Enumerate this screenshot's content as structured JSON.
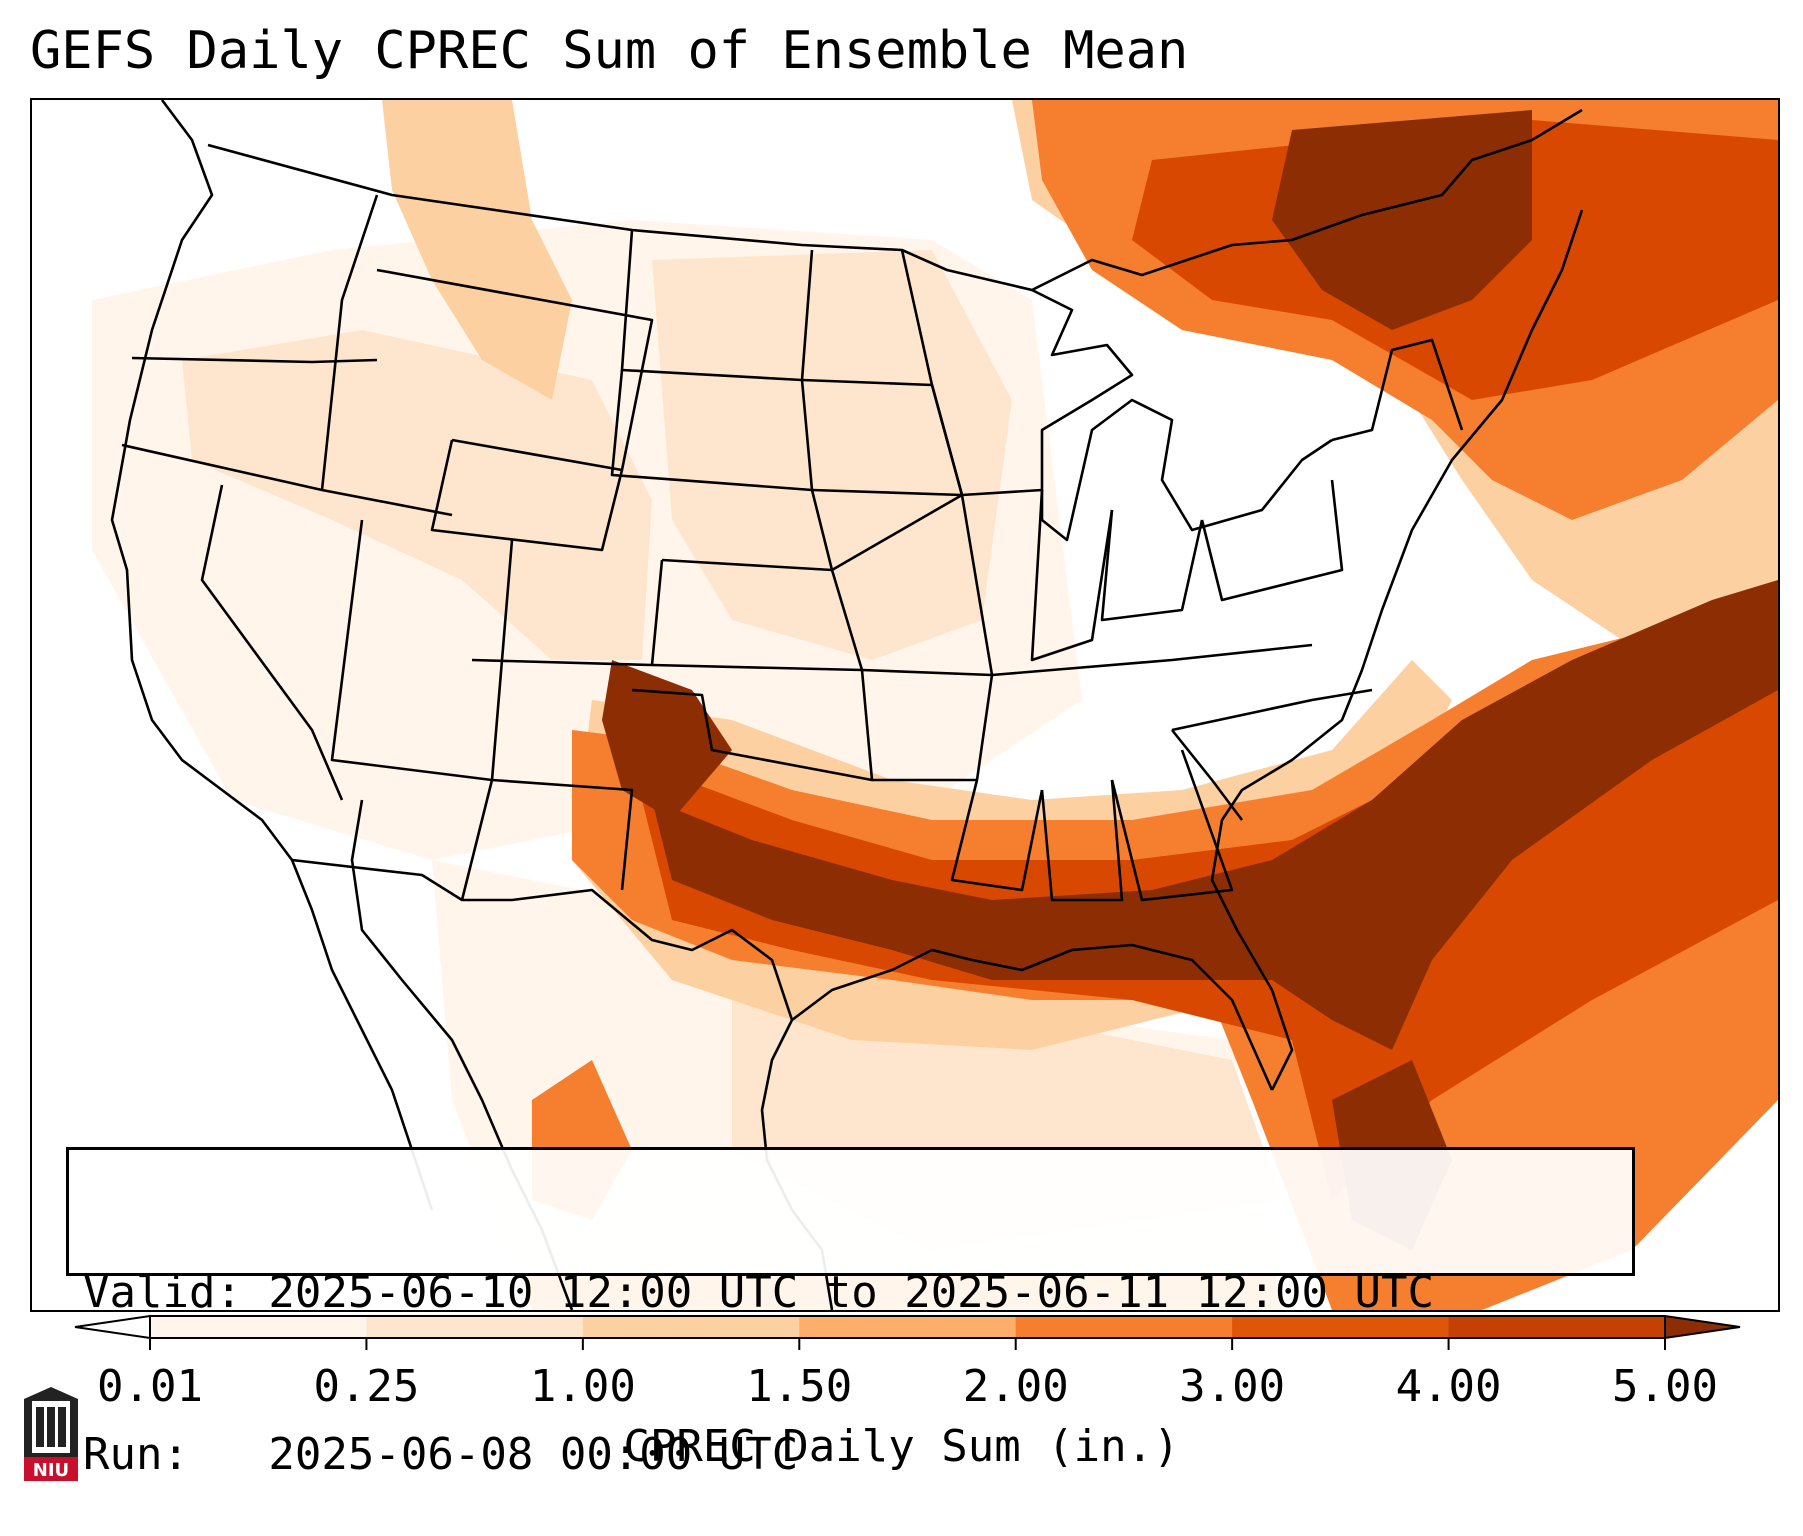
{
  "title": "GEFS Daily CPREC Sum of Ensemble Mean",
  "info": {
    "valid_line": "Valid: 2025-06-10 12:00 UTC to 2025-06-11 12:00 UTC",
    "run_line": "Run:   2025-06-08 00:00 UTC"
  },
  "colorbar": {
    "label": "CPREC Daily Sum (in.)",
    "ticks": [
      "0.01",
      "0.25",
      "1.00",
      "1.50",
      "2.00",
      "3.00",
      "4.00",
      "5.00"
    ],
    "colors": [
      "#fff5eb",
      "#fee6ce",
      "#fdd0a2",
      "#fdae6b",
      "#f57f2f",
      "#e05608",
      "#c44103"
    ],
    "under_color": "#ffffff",
    "over_color": "#8c2d04"
  },
  "map": {
    "colors": {
      "none": "#ffffff",
      "trace": "#fff5eb",
      "light": "#fee6ce",
      "moderate": "#fdd0a2",
      "heavy": "#f57f2f",
      "very_heavy": "#d94801",
      "extreme": "#8c2d04"
    },
    "boundary_color": "#000000"
  },
  "logo": {
    "text": "NIU",
    "icon": "niu-castle-logo-icon",
    "color": "#c8102e"
  }
}
